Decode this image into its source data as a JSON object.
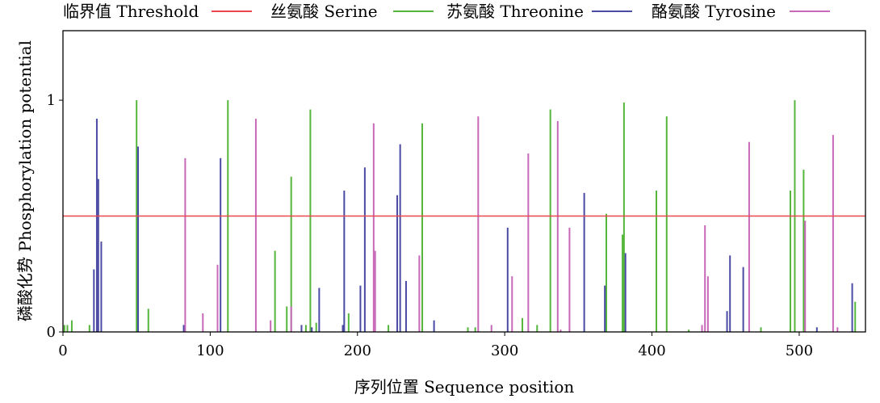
{
  "chart_data": {
    "type": "bar",
    "title": "",
    "xlabel": "序列位置 Sequence position",
    "ylabel": "磷酸化势 Phosphorylation potential",
    "xlim": [
      0,
      545
    ],
    "ylim": [
      0,
      1.3
    ],
    "xticks": [
      0,
      100,
      200,
      300,
      400,
      500
    ],
    "yticks": [
      0,
      1
    ],
    "grid": false,
    "legend_position": "top",
    "threshold": {
      "name": "临界值 Threshold",
      "value": 0.5,
      "color": "#e8484e"
    },
    "series": [
      {
        "name": "丝氨酸 Serine",
        "color": "#55b63c",
        "x": [
          1,
          3,
          6,
          18,
          50,
          58,
          112,
          144,
          152,
          155,
          165,
          168,
          172,
          194,
          221,
          244,
          275,
          280,
          312,
          322,
          331,
          369,
          380,
          381,
          403,
          410,
          425,
          474,
          494,
          497,
          503,
          538
        ],
        "values": [
          0.03,
          0.03,
          0.05,
          0.03,
          1.0,
          0.1,
          1.0,
          0.35,
          0.11,
          0.67,
          0.03,
          0.96,
          0.04,
          0.08,
          0.03,
          0.9,
          0.02,
          0.02,
          0.06,
          0.03,
          0.96,
          0.51,
          0.42,
          0.99,
          0.61,
          0.93,
          0.01,
          0.02,
          0.61,
          1.0,
          0.7,
          0.13
        ]
      },
      {
        "name": "苏氨酸 Threonine",
        "color": "#4b4ba5",
        "x": [
          21,
          23,
          24,
          26,
          51,
          82,
          107,
          162,
          169,
          174,
          190,
          191,
          202,
          205,
          227,
          229,
          233,
          252,
          302,
          354,
          368,
          382,
          451,
          453,
          462,
          512,
          536
        ],
        "values": [
          0.27,
          0.92,
          0.66,
          0.39,
          0.8,
          0.03,
          0.75,
          0.03,
          0.02,
          0.19,
          0.03,
          0.61,
          0.2,
          0.71,
          0.59,
          0.81,
          0.22,
          0.05,
          0.45,
          0.6,
          0.2,
          0.34,
          0.09,
          0.33,
          0.28,
          0.02,
          0.21
        ]
      },
      {
        "name": "酪氨酸 Tyrosine",
        "color": "#c868b8",
        "x": [
          83,
          95,
          105,
          131,
          141,
          155,
          211,
          212,
          242,
          282,
          291,
          305,
          316,
          336,
          338,
          344,
          434,
          436,
          438,
          466,
          504,
          523,
          526
        ],
        "values": [
          0.75,
          0.08,
          0.29,
          0.92,
          0.05,
          0.11,
          0.9,
          0.35,
          0.33,
          0.93,
          0.03,
          0.24,
          0.77,
          0.91,
          0.01,
          0.45,
          0.03,
          0.46,
          0.24,
          0.82,
          0.48,
          0.85,
          0.02
        ]
      }
    ]
  }
}
